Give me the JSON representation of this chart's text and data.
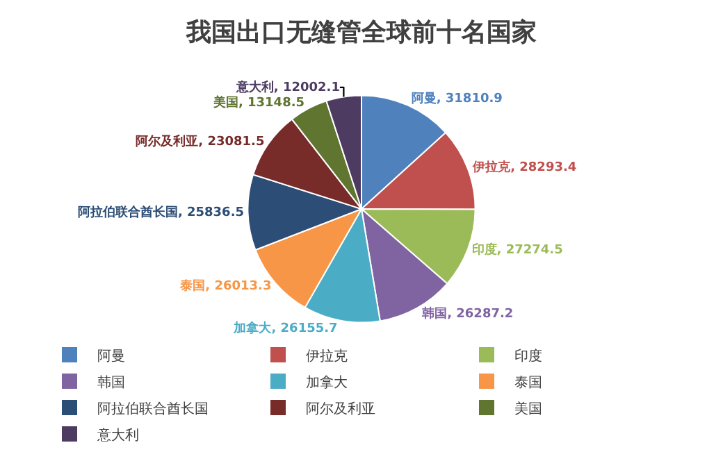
{
  "chart_data": {
    "type": "pie",
    "title": "我国出口无缝管全球前十名国家",
    "categories": [
      "阿曼",
      "伊拉克",
      "印度",
      "韩国",
      "加拿大",
      "泰国",
      "阿拉伯联合酋长国",
      "阿尔及利亚",
      "美国",
      "意大利"
    ],
    "values": [
      31810.9,
      28293.4,
      27274.5,
      26287.2,
      26155.7,
      26013.3,
      25836.5,
      23081.5,
      13148.5,
      12002.1
    ],
    "colors": [
      "#4f81bd",
      "#c0504d",
      "#9bbb59",
      "#8064a2",
      "#4bacc6",
      "#f79646",
      "#2c4d75",
      "#772c2a",
      "#5f7530",
      "#4d3b62"
    ],
    "value_labels": [
      "阿曼, 31810.9",
      "伊拉克, 28293.4",
      "印度, 27274.5",
      "韩国, 26287.2",
      "加拿大, 26155.7",
      "泰国, 26013.3",
      "阿拉伯联合酋长国, 25836.5",
      "阿尔及利亚, 23081.5",
      "美国, 13148.5",
      "意大利, 12002.1"
    ],
    "legend": "bottom"
  }
}
